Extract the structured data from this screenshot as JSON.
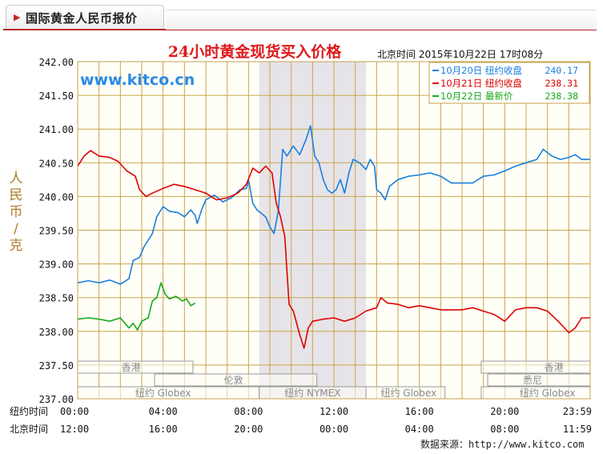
{
  "panel": {
    "tab_title": "国际黄金人民币报价",
    "source_text": "数据来源：http://www.kitco.com"
  },
  "chart_data": {
    "type": "line",
    "title": "24小时黄金现货买入价格",
    "timestamp": "北京时间  2015年10月22日 17时08分",
    "watermark": "www.kitco.cn",
    "ylabel": "人民币/克",
    "ylim": [
      237.0,
      242.0
    ],
    "y_ticks": [
      "242.00",
      "241.50",
      "241.00",
      "240.50",
      "240.00",
      "239.50",
      "239.00",
      "238.50",
      "238.00",
      "237.50",
      "237.00"
    ],
    "x_rows": [
      {
        "label": "纽约时间",
        "ticks": [
          "00:00",
          "04:00",
          "08:00",
          "12:00",
          "16:00",
          "20:00",
          "23:59"
        ]
      },
      {
        "label": "北京时间",
        "ticks": [
          "12:00",
          "16:00",
          "20:00",
          "00:00",
          "04:00",
          "08:00",
          "11:59"
        ]
      }
    ],
    "x_hours": [
      0,
      4,
      8,
      12,
      16,
      20,
      24
    ],
    "highlight_hours": [
      8.5,
      13.5
    ],
    "legend": [
      {
        "label": "10月20日  纽约收盘",
        "value": "240.17",
        "color": "#1a7fe0"
      },
      {
        "label": "10月21日  纽约收盘",
        "value": "238.31",
        "color": "#e00000"
      },
      {
        "label": "10月22日   最新价",
        "value": "238.38",
        "color": "#19a919"
      }
    ],
    "series": [
      {
        "color": "#1a7fe0",
        "points": [
          [
            0,
            238.72
          ],
          [
            0.5,
            238.75
          ],
          [
            1,
            238.72
          ],
          [
            1.5,
            238.76
          ],
          [
            2,
            238.7
          ],
          [
            2.4,
            238.78
          ],
          [
            2.6,
            239.05
          ],
          [
            2.9,
            239.1
          ],
          [
            3.1,
            239.25
          ],
          [
            3.3,
            239.35
          ],
          [
            3.5,
            239.45
          ],
          [
            3.7,
            239.7
          ],
          [
            4.0,
            239.85
          ],
          [
            4.3,
            239.78
          ],
          [
            4.7,
            239.76
          ],
          [
            5.0,
            239.7
          ],
          [
            5.3,
            239.8
          ],
          [
            5.5,
            239.72
          ],
          [
            5.6,
            239.6
          ],
          [
            5.8,
            239.8
          ],
          [
            6.0,
            239.95
          ],
          [
            6.4,
            240.02
          ],
          [
            6.8,
            239.92
          ],
          [
            7.2,
            239.98
          ],
          [
            7.6,
            240.1
          ],
          [
            7.9,
            240.12
          ],
          [
            8.0,
            240.25
          ],
          [
            8.2,
            239.9
          ],
          [
            8.4,
            239.8
          ],
          [
            8.6,
            239.75
          ],
          [
            8.8,
            239.7
          ],
          [
            9.0,
            239.55
          ],
          [
            9.2,
            239.45
          ],
          [
            9.4,
            239.8
          ],
          [
            9.6,
            240.7
          ],
          [
            9.8,
            240.6
          ],
          [
            10.1,
            240.75
          ],
          [
            10.4,
            240.62
          ],
          [
            10.7,
            240.85
          ],
          [
            10.9,
            241.05
          ],
          [
            11.1,
            240.6
          ],
          [
            11.3,
            240.5
          ],
          [
            11.5,
            240.25
          ],
          [
            11.7,
            240.1
          ],
          [
            11.9,
            240.05
          ],
          [
            12.1,
            240.1
          ],
          [
            12.3,
            240.25
          ],
          [
            12.5,
            240.05
          ],
          [
            12.7,
            240.35
          ],
          [
            12.9,
            240.55
          ],
          [
            13.2,
            240.5
          ],
          [
            13.5,
            240.4
          ],
          [
            13.7,
            240.55
          ],
          [
            13.9,
            240.45
          ],
          [
            14.0,
            240.1
          ],
          [
            14.2,
            240.05
          ],
          [
            14.4,
            239.95
          ],
          [
            14.6,
            240.15
          ],
          [
            15.0,
            240.25
          ],
          [
            15.5,
            240.3
          ],
          [
            16.0,
            240.32
          ],
          [
            16.5,
            240.35
          ],
          [
            17.0,
            240.3
          ],
          [
            17.5,
            240.2
          ],
          [
            18.5,
            240.2
          ],
          [
            19.0,
            240.3
          ],
          [
            19.5,
            240.32
          ],
          [
            20.0,
            240.38
          ],
          [
            20.5,
            240.45
          ],
          [
            21.0,
            240.5
          ],
          [
            21.5,
            240.55
          ],
          [
            21.8,
            240.7
          ],
          [
            22.2,
            240.6
          ],
          [
            22.6,
            240.55
          ],
          [
            23.0,
            240.58
          ],
          [
            23.3,
            240.62
          ],
          [
            23.6,
            240.55
          ],
          [
            23.98,
            240.55
          ]
        ]
      },
      {
        "color": "#e00000",
        "points": [
          [
            0,
            240.45
          ],
          [
            0.3,
            240.6
          ],
          [
            0.6,
            240.68
          ],
          [
            1.0,
            240.6
          ],
          [
            1.5,
            240.58
          ],
          [
            1.9,
            240.52
          ],
          [
            2.3,
            240.38
          ],
          [
            2.7,
            240.3
          ],
          [
            2.9,
            240.1
          ],
          [
            3.2,
            240.0
          ],
          [
            3.5,
            240.05
          ],
          [
            4.0,
            240.12
          ],
          [
            4.5,
            240.18
          ],
          [
            5.0,
            240.15
          ],
          [
            5.5,
            240.1
          ],
          [
            6.0,
            240.05
          ],
          [
            6.5,
            239.95
          ],
          [
            7.0,
            239.98
          ],
          [
            7.5,
            240.05
          ],
          [
            7.9,
            240.18
          ],
          [
            8.2,
            240.42
          ],
          [
            8.5,
            240.35
          ],
          [
            8.8,
            240.45
          ],
          [
            9.1,
            240.35
          ],
          [
            9.3,
            239.9
          ],
          [
            9.5,
            239.7
          ],
          [
            9.7,
            239.4
          ],
          [
            9.8,
            238.9
          ],
          [
            9.9,
            238.4
          ],
          [
            10.1,
            238.3
          ],
          [
            10.4,
            237.95
          ],
          [
            10.6,
            237.75
          ],
          [
            10.8,
            238.05
          ],
          [
            11.0,
            238.15
          ],
          [
            11.5,
            238.18
          ],
          [
            12.0,
            238.2
          ],
          [
            12.5,
            238.15
          ],
          [
            13.0,
            238.2
          ],
          [
            13.5,
            238.3
          ],
          [
            14.0,
            238.35
          ],
          [
            14.2,
            238.5
          ],
          [
            14.5,
            238.42
          ],
          [
            15.0,
            238.4
          ],
          [
            15.5,
            238.35
          ],
          [
            16.0,
            238.38
          ],
          [
            16.5,
            238.35
          ],
          [
            17.0,
            238.32
          ],
          [
            18.0,
            238.32
          ],
          [
            18.5,
            238.35
          ],
          [
            19.0,
            238.3
          ],
          [
            19.5,
            238.25
          ],
          [
            20.0,
            238.15
          ],
          [
            20.5,
            238.32
          ],
          [
            21.0,
            238.35
          ],
          [
            21.5,
            238.35
          ],
          [
            22.0,
            238.3
          ],
          [
            22.5,
            238.15
          ],
          [
            23.0,
            237.98
          ],
          [
            23.3,
            238.05
          ],
          [
            23.6,
            238.2
          ],
          [
            23.98,
            238.2
          ]
        ]
      },
      {
        "color": "#19a919",
        "points": [
          [
            0,
            238.18
          ],
          [
            0.5,
            238.2
          ],
          [
            1.0,
            238.18
          ],
          [
            1.5,
            238.15
          ],
          [
            2.0,
            238.2
          ],
          [
            2.4,
            238.05
          ],
          [
            2.6,
            238.12
          ],
          [
            2.8,
            238.02
          ],
          [
            3.0,
            238.15
          ],
          [
            3.3,
            238.2
          ],
          [
            3.5,
            238.45
          ],
          [
            3.7,
            238.5
          ],
          [
            3.9,
            238.72
          ],
          [
            4.1,
            238.55
          ],
          [
            4.3,
            238.48
          ],
          [
            4.6,
            238.52
          ],
          [
            4.9,
            238.45
          ],
          [
            5.1,
            238.48
          ],
          [
            5.3,
            238.38
          ],
          [
            5.5,
            238.42
          ]
        ]
      }
    ],
    "market_bands": [
      {
        "name": "香港",
        "label_hour": 2.5,
        "row": 1,
        "start": 0,
        "end": 5.4
      },
      {
        "name": "伦敦",
        "label_hour": 7.3,
        "row": 2,
        "start": 3.6,
        "end": 11.2
      },
      {
        "name": "纽约 Globex",
        "label_hour": 4.0,
        "row": 3,
        "start": 0,
        "end": 8.5
      },
      {
        "name": "纽约 NYMEX",
        "label_hour": 11.0,
        "row": 3,
        "start": 8.5,
        "end": 13.5
      },
      {
        "name": "纽约 Globex",
        "label_hour": 15.5,
        "row": 3,
        "start": 13.5,
        "end": 17.2
      },
      {
        "name": "香港",
        "label_hour": 22.3,
        "row": 1,
        "start": 18.9,
        "end": 24
      },
      {
        "name": "悉尼",
        "label_hour": 21.3,
        "row": 2,
        "start": 19.2,
        "end": 24
      },
      {
        "name": "纽约 Globex",
        "label_hour": 22.0,
        "row": 3,
        "start": 18.9,
        "end": 24
      }
    ]
  }
}
